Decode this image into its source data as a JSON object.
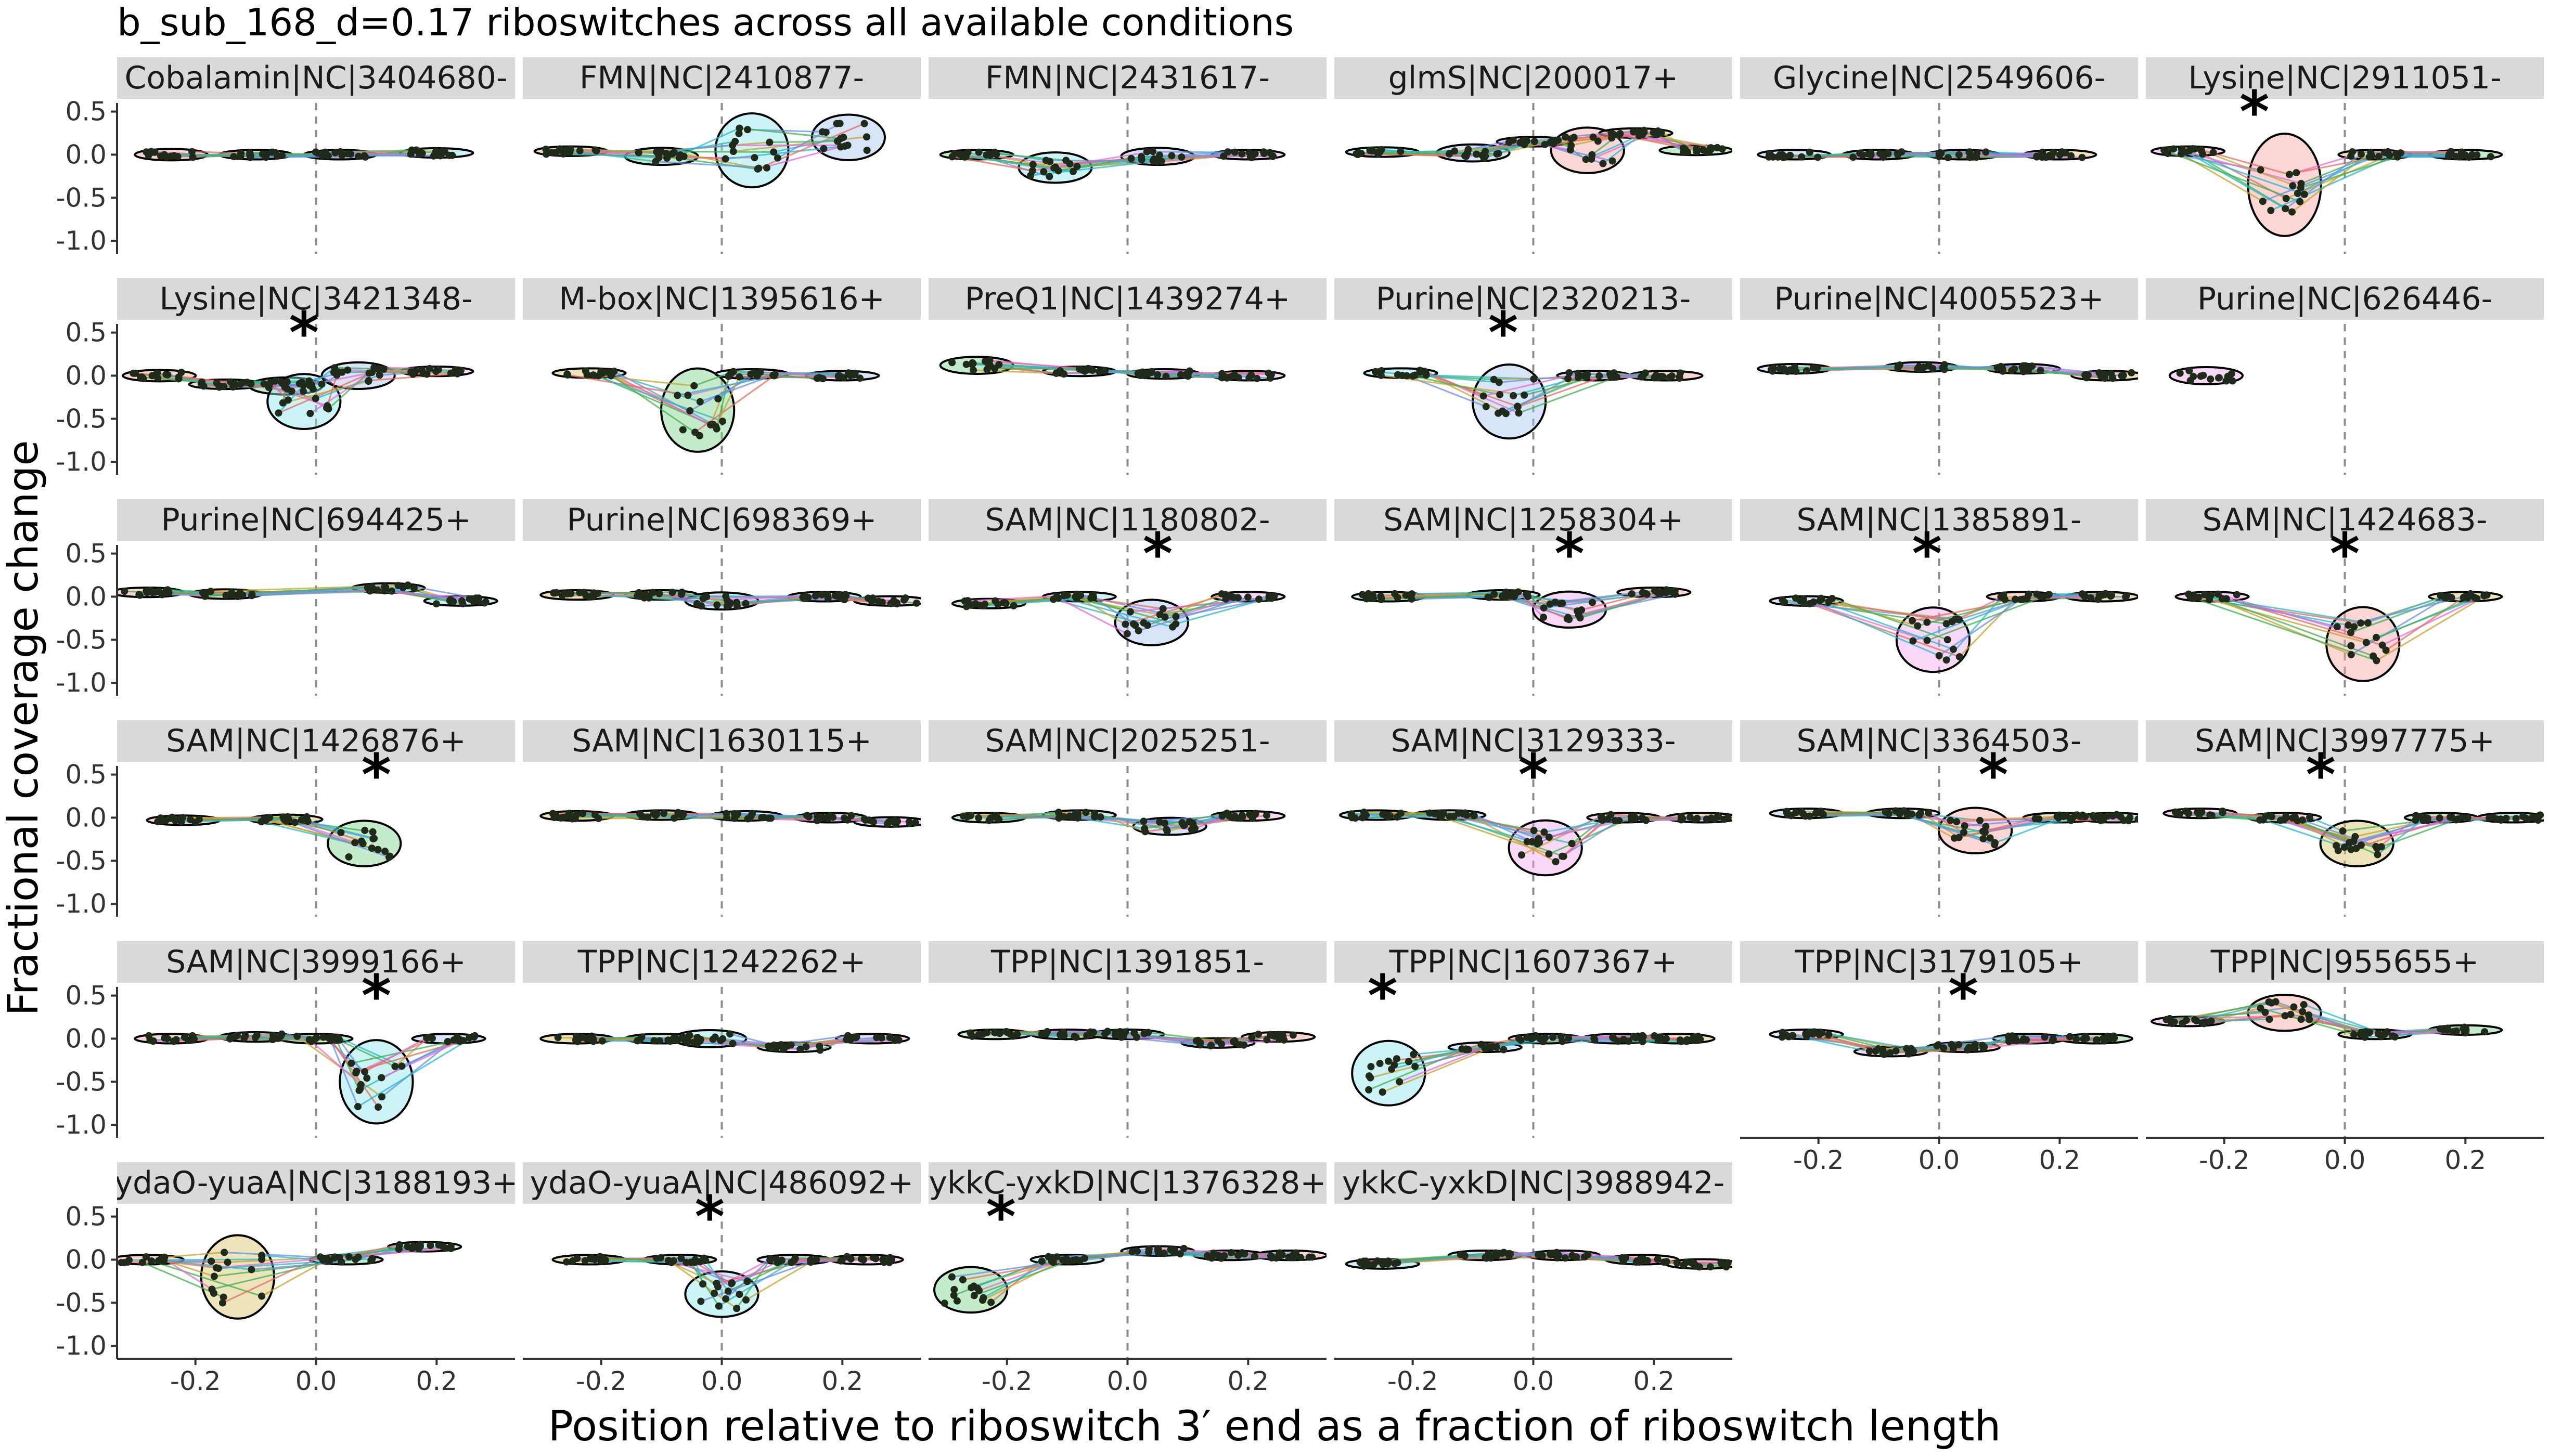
{
  "chart_data": {
    "type": "scatter",
    "title": "b_sub_168_d=0.17 riboswitches across all available conditions",
    "xlabel": "Position relative to riboswitch 3′ end as a fraction of riboswitch length",
    "ylabel": "Fractional coverage change",
    "xlim": [
      -0.33,
      0.33
    ],
    "ylim": [
      -1.15,
      0.6
    ],
    "x_ticks": [
      -0.2,
      0.0,
      0.2
    ],
    "x_tick_labels": [
      "-0.2",
      "0.0",
      "0.2"
    ],
    "y_ticks": [
      0.5,
      0.0,
      -0.5,
      -1.0
    ],
    "y_tick_labels": [
      "0.5",
      "0.0",
      "-0.5",
      "-1.0"
    ],
    "grid": false,
    "reference_line_x": 0.0,
    "significance_marker": "*",
    "cluster_colors": [
      "#f4a6a0",
      "#d8c36a",
      "#7fd58a",
      "#8ee6ea",
      "#a9c6f2",
      "#f2a8ee"
    ],
    "line_colors": [
      "#e86a5a",
      "#c9a22a",
      "#3fb24d",
      "#27b8c9",
      "#6a8ee6",
      "#e46ad6"
    ],
    "panels": [
      {
        "label": "Cobalamin|NC|3404680-",
        "star": null,
        "clusters": [
          {
            "x": -0.24,
            "y": 0.0,
            "dy": -0.02
          },
          {
            "x": -0.1,
            "y": 0.0,
            "dy": 0.0
          },
          {
            "x": 0.04,
            "y": 0.0,
            "dy": 0.01
          },
          {
            "x": 0.2,
            "y": 0.02,
            "dy": -0.01
          }
        ]
      },
      {
        "label": "FMN|NC|2410877-",
        "star": null,
        "clusters": [
          {
            "x": -0.25,
            "y": 0.04,
            "dy": 0.0
          },
          {
            "x": -0.1,
            "y": -0.02,
            "dy": -0.05
          },
          {
            "x": 0.05,
            "y": 0.05,
            "dy": -0.35
          },
          {
            "x": 0.21,
            "y": 0.2,
            "dy": -0.2
          }
        ]
      },
      {
        "label": "FMN|NC|2431617-",
        "star": null,
        "clusters": [
          {
            "x": -0.25,
            "y": 0.0,
            "dy": 0.0
          },
          {
            "x": -0.12,
            "y": -0.15,
            "dy": -0.12
          },
          {
            "x": 0.05,
            "y": -0.02,
            "dy": 0.05
          },
          {
            "x": 0.2,
            "y": 0.0,
            "dy": 0.0
          }
        ]
      },
      {
        "label": "glmS|NC|200017+",
        "star": null,
        "clusters": [
          {
            "x": -0.25,
            "y": 0.03,
            "dy": 0.0
          },
          {
            "x": -0.1,
            "y": 0.02,
            "dy": 0.05
          },
          {
            "x": 0.0,
            "y": 0.15,
            "dy": 0.0
          },
          {
            "x": 0.09,
            "y": 0.05,
            "dy": -0.2
          },
          {
            "x": 0.17,
            "y": 0.25,
            "dy": 0.0
          },
          {
            "x": 0.27,
            "y": 0.05,
            "dy": 0.0
          }
        ]
      },
      {
        "label": "Glycine|NC|2549606-",
        "star": null,
        "clusters": [
          {
            "x": -0.24,
            "y": 0.0,
            "dy": 0.0
          },
          {
            "x": -0.1,
            "y": 0.0,
            "dy": 0.0
          },
          {
            "x": 0.04,
            "y": 0.0,
            "dy": 0.0
          },
          {
            "x": 0.2,
            "y": 0.0,
            "dy": 0.0
          }
        ]
      },
      {
        "label": "Lysine|NC|2911051-",
        "star": -0.15,
        "clusters": [
          {
            "x": -0.26,
            "y": 0.04,
            "dy": 0.0
          },
          {
            "x": -0.1,
            "y": -0.35,
            "dy": -0.5
          },
          {
            "x": 0.05,
            "y": 0.0,
            "dy": 0.0
          },
          {
            "x": 0.2,
            "y": 0.0,
            "dy": 0.0
          }
        ]
      },
      {
        "label": "Lysine|NC|3421348-",
        "star": -0.02,
        "clusters": [
          {
            "x": -0.26,
            "y": 0.0,
            "dy": -0.02
          },
          {
            "x": -0.15,
            "y": -0.1,
            "dy": 0.0
          },
          {
            "x": -0.05,
            "y": -0.12,
            "dy": -0.05
          },
          {
            "x": -0.02,
            "y": -0.3,
            "dy": -0.25
          },
          {
            "x": 0.07,
            "y": 0.0,
            "dy": -0.1
          },
          {
            "x": 0.2,
            "y": 0.05,
            "dy": 0.0
          }
        ]
      },
      {
        "label": "M-box|NC|1395616+",
        "star": null,
        "clusters": [
          {
            "x": -0.22,
            "y": 0.03,
            "dy": 0.0
          },
          {
            "x": -0.04,
            "y": -0.4,
            "dy": -0.4
          },
          {
            "x": 0.05,
            "y": 0.02,
            "dy": 0.0
          },
          {
            "x": 0.2,
            "y": 0.0,
            "dy": 0.0
          }
        ]
      },
      {
        "label": "PreQ1|NC|1439274+",
        "star": null,
        "clusters": [
          {
            "x": -0.25,
            "y": 0.12,
            "dy": -0.05
          },
          {
            "x": -0.08,
            "y": 0.05,
            "dy": 0.0
          },
          {
            "x": 0.06,
            "y": 0.02,
            "dy": 0.0
          },
          {
            "x": 0.2,
            "y": 0.0,
            "dy": 0.0
          }
        ]
      },
      {
        "label": "Purine|NC|2320213-",
        "star": -0.05,
        "clusters": [
          {
            "x": -0.22,
            "y": 0.03,
            "dy": 0.0
          },
          {
            "x": -0.04,
            "y": -0.3,
            "dy": -0.35
          },
          {
            "x": 0.1,
            "y": 0.0,
            "dy": 0.0
          },
          {
            "x": 0.22,
            "y": 0.0,
            "dy": 0.0
          }
        ]
      },
      {
        "label": "Purine|NC|4005523+",
        "star": null,
        "clusters": [
          {
            "x": -0.24,
            "y": 0.08,
            "dy": 0.0
          },
          {
            "x": -0.03,
            "y": 0.1,
            "dy": 0.0
          },
          {
            "x": 0.14,
            "y": 0.08,
            "dy": 0.0
          },
          {
            "x": 0.28,
            "y": 0.0,
            "dy": 0.0
          }
        ]
      },
      {
        "label": "Purine|NC|626446-",
        "star": null,
        "clusters": [
          {
            "x": -0.23,
            "y": 0.0,
            "dy": -0.05
          }
        ]
      },
      {
        "label": "Purine|NC|694425+",
        "star": null,
        "clusters": [
          {
            "x": -0.28,
            "y": 0.05,
            "dy": 0.0
          },
          {
            "x": -0.15,
            "y": 0.03,
            "dy": 0.0
          },
          {
            "x": 0.12,
            "y": 0.1,
            "dy": 0.0
          },
          {
            "x": 0.24,
            "y": -0.05,
            "dy": 0.0
          }
        ]
      },
      {
        "label": "Purine|NC|698369+",
        "star": null,
        "clusters": [
          {
            "x": -0.24,
            "y": 0.02,
            "dy": 0.0
          },
          {
            "x": -0.1,
            "y": 0.02,
            "dy": 0.0
          },
          {
            "x": 0.0,
            "y": -0.05,
            "dy": -0.05
          },
          {
            "x": 0.17,
            "y": 0.0,
            "dy": 0.0
          },
          {
            "x": 0.28,
            "y": -0.05,
            "dy": 0.0
          }
        ]
      },
      {
        "label": "SAM|NC|1180802-",
        "star": 0.05,
        "clusters": [
          {
            "x": -0.23,
            "y": -0.08,
            "dy": 0.0
          },
          {
            "x": -0.08,
            "y": 0.0,
            "dy": 0.0
          },
          {
            "x": 0.04,
            "y": -0.3,
            "dy": -0.2
          },
          {
            "x": 0.2,
            "y": 0.0,
            "dy": 0.0
          }
        ]
      },
      {
        "label": "SAM|NC|1258304+",
        "star": 0.06,
        "clusters": [
          {
            "x": -0.24,
            "y": 0.0,
            "dy": 0.0
          },
          {
            "x": -0.05,
            "y": 0.02,
            "dy": 0.0
          },
          {
            "x": 0.06,
            "y": -0.15,
            "dy": -0.15
          },
          {
            "x": 0.2,
            "y": 0.05,
            "dy": 0.0
          }
        ]
      },
      {
        "label": "SAM|NC|1385891-",
        "star": -0.02,
        "clusters": [
          {
            "x": -0.22,
            "y": -0.05,
            "dy": 0.0
          },
          {
            "x": -0.01,
            "y": -0.5,
            "dy": -0.3
          },
          {
            "x": 0.14,
            "y": 0.0,
            "dy": 0.0
          },
          {
            "x": 0.27,
            "y": 0.0,
            "dy": 0.0
          }
        ]
      },
      {
        "label": "SAM|NC|1424683-",
        "star": 0.0,
        "clusters": [
          {
            "x": -0.22,
            "y": 0.0,
            "dy": 0.0
          },
          {
            "x": 0.03,
            "y": -0.55,
            "dy": -0.35
          },
          {
            "x": 0.2,
            "y": 0.0,
            "dy": 0.0
          }
        ]
      },
      {
        "label": "SAM|NC|1426876+",
        "star": 0.1,
        "clusters": [
          {
            "x": -0.22,
            "y": -0.03,
            "dy": 0.0
          },
          {
            "x": -0.05,
            "y": -0.02,
            "dy": 0.0
          },
          {
            "x": 0.08,
            "y": -0.3,
            "dy": -0.2
          }
        ]
      },
      {
        "label": "SAM|NC|1630115+",
        "star": null,
        "clusters": [
          {
            "x": -0.24,
            "y": 0.02,
            "dy": 0.0
          },
          {
            "x": -0.1,
            "y": 0.03,
            "dy": 0.0
          },
          {
            "x": 0.04,
            "y": 0.02,
            "dy": 0.0
          },
          {
            "x": 0.18,
            "y": 0.0,
            "dy": 0.0
          },
          {
            "x": 0.28,
            "y": -0.05,
            "dy": 0.0
          }
        ]
      },
      {
        "label": "SAM|NC|2025251-",
        "star": null,
        "clusters": [
          {
            "x": -0.23,
            "y": 0.0,
            "dy": 0.0
          },
          {
            "x": -0.08,
            "y": 0.03,
            "dy": 0.0
          },
          {
            "x": 0.07,
            "y": -0.1,
            "dy": -0.05
          },
          {
            "x": 0.2,
            "y": 0.02,
            "dy": 0.0
          }
        ]
      },
      {
        "label": "SAM|NC|3129333-",
        "star": 0.0,
        "clusters": [
          {
            "x": -0.26,
            "y": 0.03,
            "dy": 0.0
          },
          {
            "x": -0.14,
            "y": 0.03,
            "dy": 0.0
          },
          {
            "x": 0.02,
            "y": -0.35,
            "dy": -0.25
          },
          {
            "x": 0.15,
            "y": 0.0,
            "dy": 0.0
          },
          {
            "x": 0.28,
            "y": 0.0,
            "dy": 0.0
          }
        ]
      },
      {
        "label": "SAM|NC|3364503-",
        "star": 0.09,
        "clusters": [
          {
            "x": -0.22,
            "y": 0.05,
            "dy": 0.0
          },
          {
            "x": -0.06,
            "y": 0.05,
            "dy": 0.0
          },
          {
            "x": 0.06,
            "y": -0.15,
            "dy": -0.2
          },
          {
            "x": 0.2,
            "y": 0.0,
            "dy": 0.0
          },
          {
            "x": 0.29,
            "y": 0.0,
            "dy": 0.0
          }
        ]
      },
      {
        "label": "SAM|NC|3997775+",
        "star": -0.04,
        "clusters": [
          {
            "x": -0.24,
            "y": 0.05,
            "dy": 0.0
          },
          {
            "x": -0.1,
            "y": 0.0,
            "dy": 0.0
          },
          {
            "x": 0.02,
            "y": -0.3,
            "dy": -0.2
          },
          {
            "x": 0.16,
            "y": 0.0,
            "dy": 0.0
          },
          {
            "x": 0.28,
            "y": 0.0,
            "dy": 0.0
          }
        ]
      },
      {
        "label": "SAM|NC|3999166+",
        "star": 0.1,
        "clusters": [
          {
            "x": -0.24,
            "y": 0.0,
            "dy": 0.0
          },
          {
            "x": -0.1,
            "y": 0.02,
            "dy": 0.0
          },
          {
            "x": 0.0,
            "y": 0.0,
            "dy": 0.0
          },
          {
            "x": 0.1,
            "y": -0.5,
            "dy": -0.4
          },
          {
            "x": 0.22,
            "y": 0.0,
            "dy": 0.0
          }
        ]
      },
      {
        "label": "TPP|NC|1242262+",
        "star": null,
        "clusters": [
          {
            "x": -0.24,
            "y": 0.0,
            "dy": 0.0
          },
          {
            "x": -0.1,
            "y": 0.0,
            "dy": 0.0
          },
          {
            "x": -0.02,
            "y": 0.0,
            "dy": -0.05
          },
          {
            "x": 0.12,
            "y": -0.1,
            "dy": 0.0
          },
          {
            "x": 0.25,
            "y": 0.0,
            "dy": 0.0
          }
        ]
      },
      {
        "label": "TPP|NC|1391851-",
        "star": null,
        "clusters": [
          {
            "x": -0.22,
            "y": 0.05,
            "dy": 0.0
          },
          {
            "x": -0.1,
            "y": 0.05,
            "dy": 0.0
          },
          {
            "x": 0.0,
            "y": 0.05,
            "dy": 0.0
          },
          {
            "x": 0.15,
            "y": -0.05,
            "dy": 0.0
          },
          {
            "x": 0.25,
            "y": 0.02,
            "dy": 0.0
          }
        ]
      },
      {
        "label": "TPP|NC|1607367+",
        "star": -0.25,
        "clusters": [
          {
            "x": -0.24,
            "y": -0.4,
            "dy": -0.3
          },
          {
            "x": -0.08,
            "y": -0.1,
            "dy": 0.0
          },
          {
            "x": 0.02,
            "y": 0.0,
            "dy": 0.0
          },
          {
            "x": 0.14,
            "y": 0.0,
            "dy": 0.0
          },
          {
            "x": 0.24,
            "y": 0.0,
            "dy": 0.0
          }
        ]
      },
      {
        "label": "TPP|NC|3179105+",
        "star": 0.04,
        "clusters": [
          {
            "x": -0.22,
            "y": 0.05,
            "dy": 0.0
          },
          {
            "x": -0.08,
            "y": -0.15,
            "dy": 0.0
          },
          {
            "x": 0.04,
            "y": -0.1,
            "dy": 0.0
          },
          {
            "x": 0.15,
            "y": 0.0,
            "dy": 0.0
          },
          {
            "x": 0.26,
            "y": 0.0,
            "dy": 0.0
          }
        ]
      },
      {
        "label": "TPP|NC|955655+",
        "star": null,
        "clusters": [
          {
            "x": -0.26,
            "y": 0.2,
            "dy": 0.0
          },
          {
            "x": -0.1,
            "y": 0.3,
            "dy": -0.15
          },
          {
            "x": 0.05,
            "y": 0.05,
            "dy": 0.0
          },
          {
            "x": 0.2,
            "y": 0.1,
            "dy": 0.0
          }
        ]
      },
      {
        "label": "ydaO-yuaA|NC|3188193+",
        "star": null,
        "clusters": [
          {
            "x": -0.28,
            "y": 0.0,
            "dy": 0.0
          },
          {
            "x": -0.13,
            "y": -0.2,
            "dy": -0.4
          },
          {
            "x": 0.05,
            "y": 0.0,
            "dy": 0.0
          },
          {
            "x": 0.18,
            "y": 0.15,
            "dy": 0.0
          }
        ]
      },
      {
        "label": "ydaO-yuaA|NC|486092+",
        "star": -0.02,
        "clusters": [
          {
            "x": -0.22,
            "y": 0.0,
            "dy": 0.0
          },
          {
            "x": -0.07,
            "y": 0.0,
            "dy": 0.0
          },
          {
            "x": 0.0,
            "y": -0.4,
            "dy": -0.2
          },
          {
            "x": 0.12,
            "y": 0.0,
            "dy": 0.0
          },
          {
            "x": 0.24,
            "y": 0.0,
            "dy": 0.0
          }
        ]
      },
      {
        "label": "ykkC-yxkD|NC|1376328+",
        "star": -0.21,
        "clusters": [
          {
            "x": -0.26,
            "y": -0.35,
            "dy": -0.2
          },
          {
            "x": -0.1,
            "y": 0.0,
            "dy": 0.0
          },
          {
            "x": 0.05,
            "y": 0.1,
            "dy": 0.0
          },
          {
            "x": 0.17,
            "y": 0.05,
            "dy": 0.0
          },
          {
            "x": 0.27,
            "y": 0.05,
            "dy": 0.0
          }
        ]
      },
      {
        "label": "ykkC-yxkD|NC|3988942-",
        "star": null,
        "clusters": [
          {
            "x": -0.25,
            "y": -0.05,
            "dy": 0.0
          },
          {
            "x": -0.08,
            "y": 0.05,
            "dy": 0.0
          },
          {
            "x": 0.05,
            "y": 0.05,
            "dy": 0.0
          },
          {
            "x": 0.18,
            "y": 0.0,
            "dy": 0.0
          },
          {
            "x": 0.28,
            "y": -0.05,
            "dy": 0.0
          }
        ]
      }
    ]
  }
}
